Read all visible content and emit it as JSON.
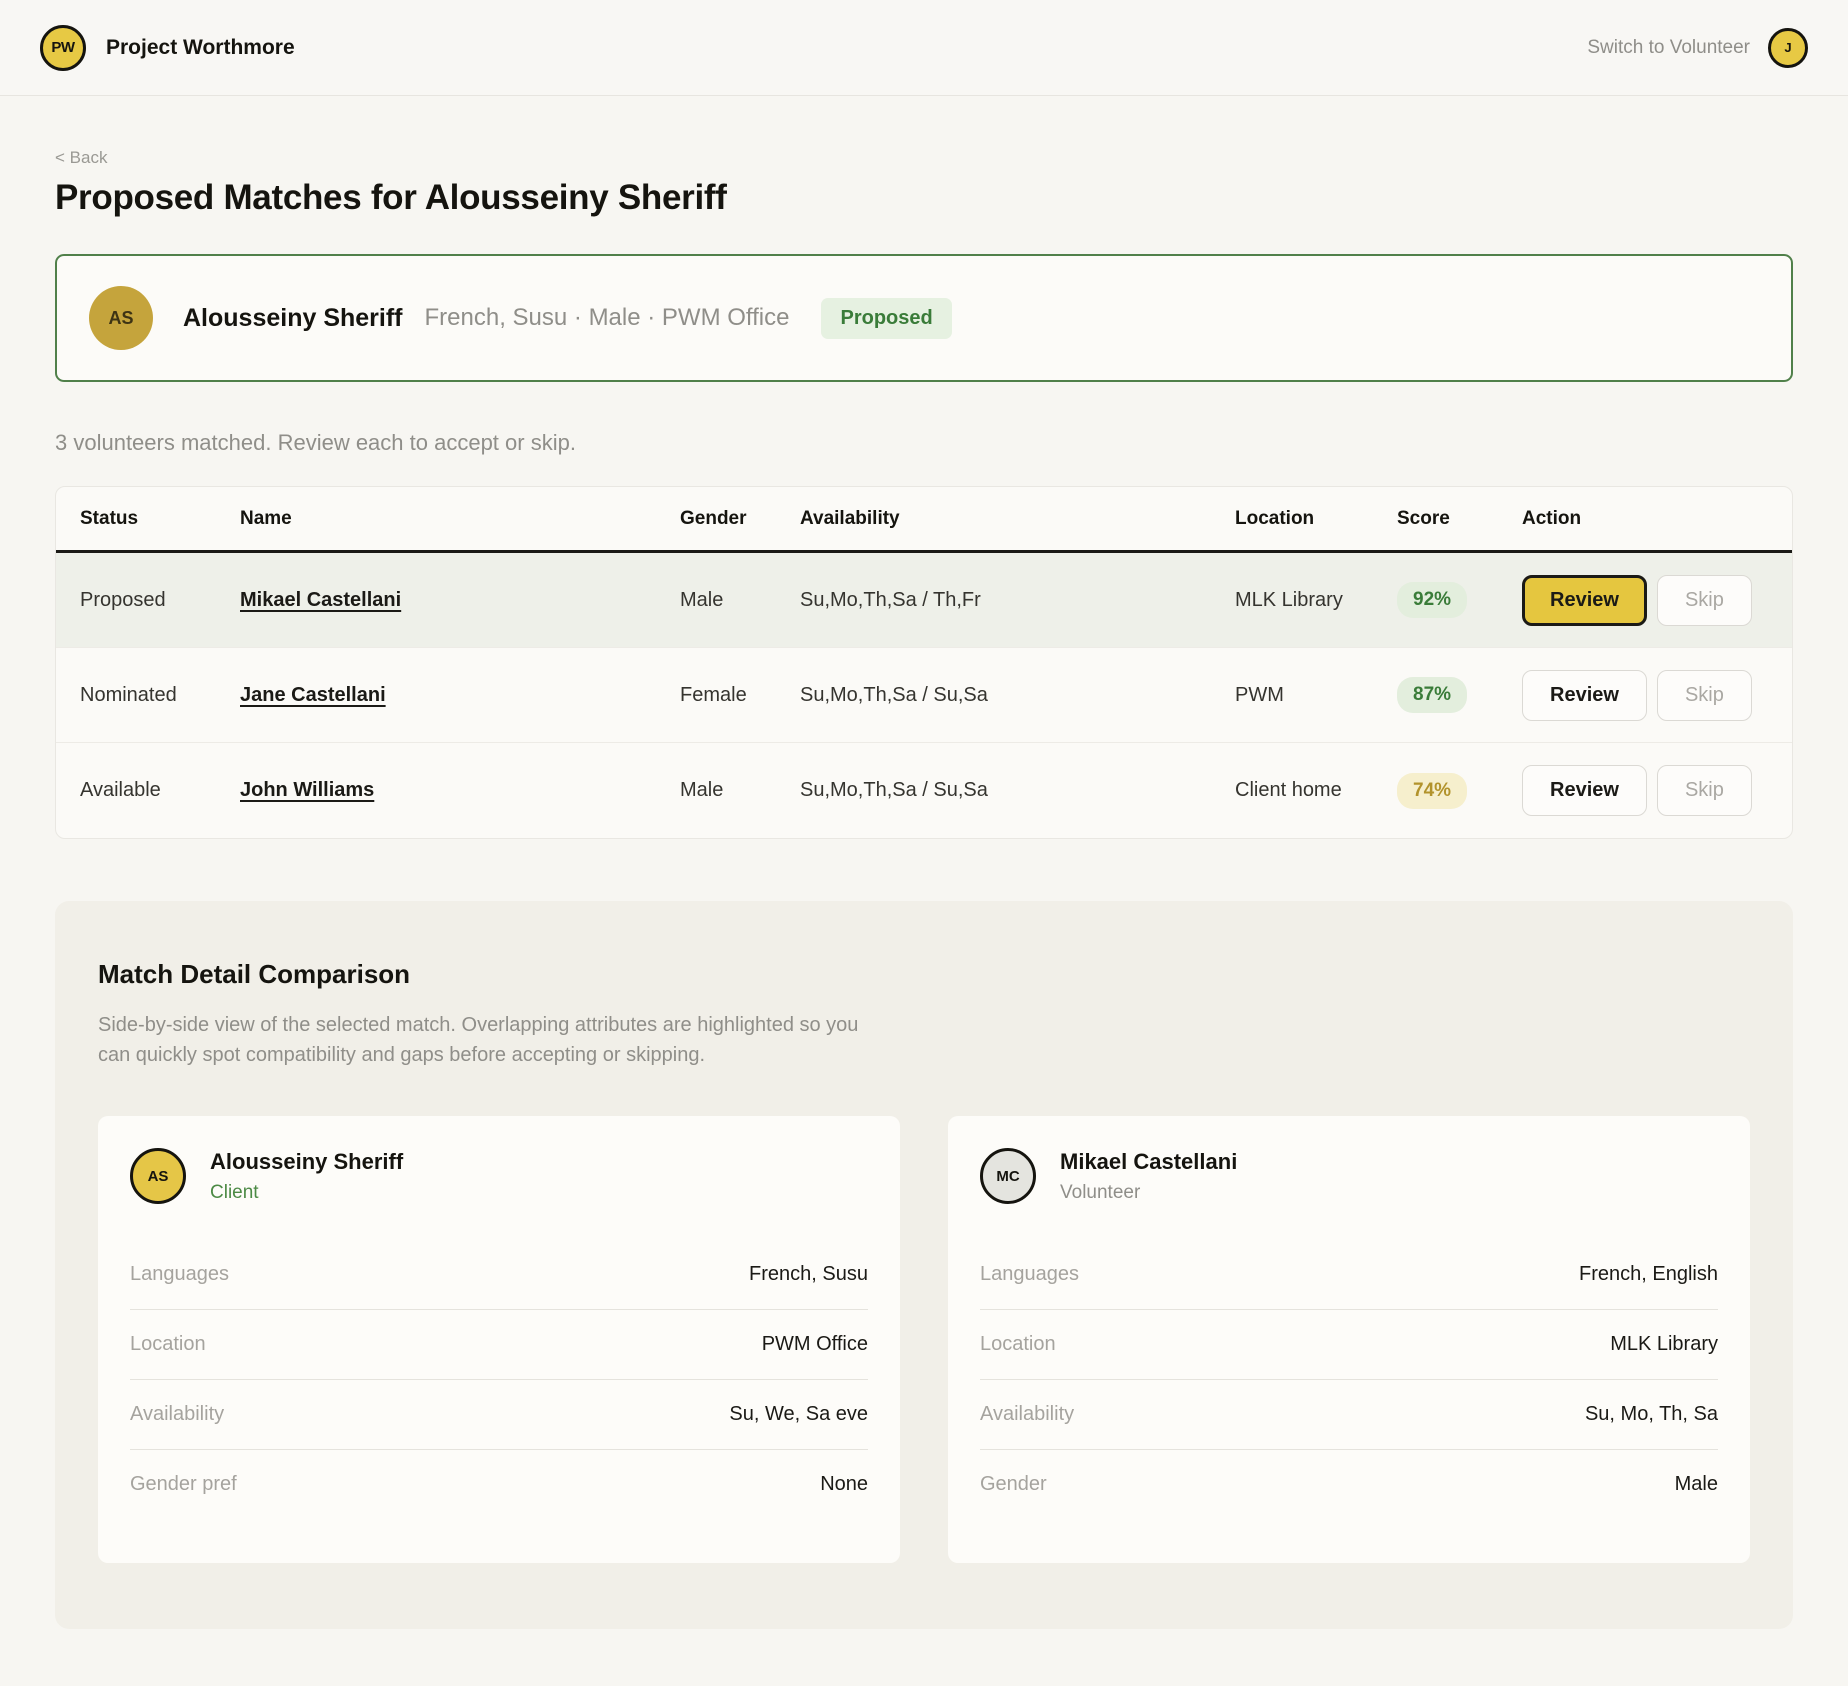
{
  "header": {
    "logo_initials": "PW",
    "app_name": "Project Worthmore",
    "switch_label": "Switch to Volunteer",
    "user_initial": "J"
  },
  "page": {
    "back_label": "< Back",
    "title": "Proposed Matches for Alousseiny Sheriff",
    "summary": "3 volunteers matched. Review each to accept or skip."
  },
  "client_banner": {
    "initials": "AS",
    "name": "Alousseiny Sheriff",
    "meta": "French, Susu · Male · PWM Office",
    "badge": "Proposed"
  },
  "table": {
    "columns": {
      "status": "Status",
      "name": "Name",
      "gender": "Gender",
      "availability": "Availability",
      "location": "Location",
      "score": "Score",
      "action": "Action"
    },
    "rows": [
      {
        "status": "Proposed",
        "name": "Mikael Castellani",
        "gender": "Male",
        "availability": "Su,Mo,Th,Sa / Th,Fr",
        "location": "MLK Library",
        "score": "92%",
        "review_label": "Review",
        "skip_label": "Skip"
      },
      {
        "status": "Nominated",
        "name": "Jane Castellani",
        "gender": "Female",
        "availability": "Su,Mo,Th,Sa / Su,Sa",
        "location": "PWM",
        "score": "87%",
        "review_label": "Review",
        "skip_label": "Skip"
      },
      {
        "status": "Available",
        "name": "John Williams",
        "gender": "Male",
        "availability": "Su,Mo,Th,Sa / Su,Sa",
        "location": "Client home",
        "score": "74%",
        "review_label": "Review",
        "skip_label": "Skip"
      }
    ]
  },
  "comparison": {
    "title": "Match Detail Comparison",
    "description": "Side-by-side view of the selected match. Overlapping attributes are highlighted so you can quickly spot compatibility and gaps before accepting or skipping.",
    "cards": [
      {
        "initials": "AS",
        "name": "Alousseiny Sheriff",
        "role": "Client",
        "attributes": [
          {
            "label": "Languages",
            "value": "French, Susu"
          },
          {
            "label": "Location",
            "value": "PWM Office"
          },
          {
            "label": "Availability",
            "value": "Su, We, Sa eve"
          },
          {
            "label": "Gender pref",
            "value": "None"
          }
        ]
      },
      {
        "initials": "MC",
        "name": "Mikael Castellani",
        "role": "Volunteer",
        "attributes": [
          {
            "label": "Languages",
            "value": "French, English"
          },
          {
            "label": "Location",
            "value": "MLK Library"
          },
          {
            "label": "Availability",
            "value": "Su, Mo, Th, Sa"
          },
          {
            "label": "Gender",
            "value": "Male"
          }
        ]
      }
    ]
  },
  "colors": {
    "accent_yellow": "#e5c63f",
    "brand_green": "#3a7c39",
    "score_gold": "#b2932c",
    "banner_border_green": "#50804a"
  }
}
